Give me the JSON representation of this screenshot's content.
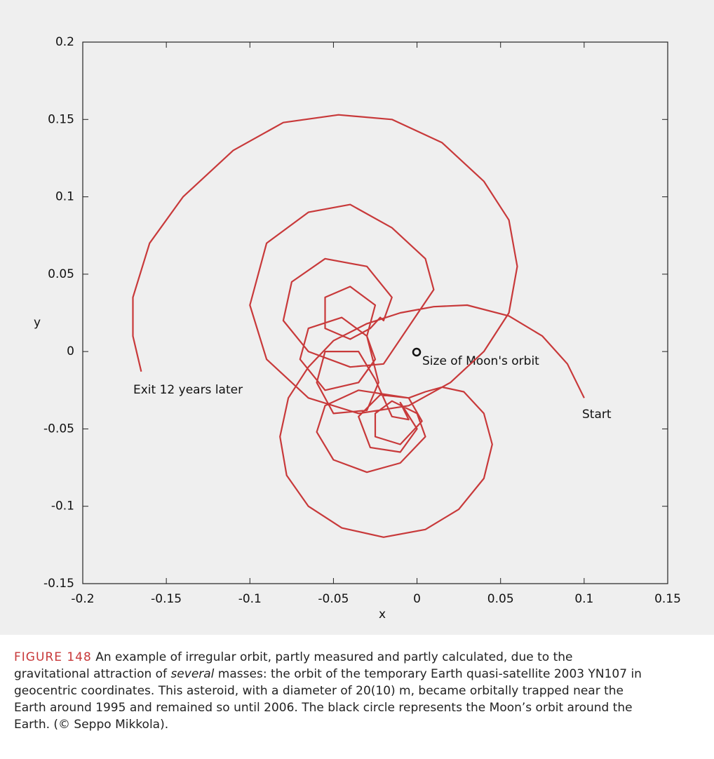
{
  "chart_data": {
    "type": "line",
    "xlabel": "x",
    "ylabel": "y",
    "xlim": [
      -0.2,
      0.15
    ],
    "ylim": [
      -0.15,
      0.2
    ],
    "xticks": [
      -0.2,
      -0.15,
      -0.1,
      -0.05,
      0,
      0.05,
      0.1,
      0.15
    ],
    "yticks": [
      -0.15,
      -0.1,
      -0.05,
      0,
      0.05,
      0.1,
      0.15,
      0.2
    ],
    "annotations": [
      "Start",
      "Exit 12 years later",
      "Size of Moon's orbit"
    ],
    "series": [
      {
        "color": "#c8393a",
        "x": [
          0.1,
          0.09,
          0.075,
          0.055,
          0.03,
          0.01,
          -0.01,
          -0.03,
          -0.05,
          -0.065,
          -0.077,
          -0.082,
          -0.078,
          -0.065,
          -0.045,
          -0.02,
          0.005,
          0.025,
          0.04,
          0.045,
          0.04,
          0.028,
          0.015,
          0.005,
          -0.005,
          -0.035,
          -0.055,
          -0.06,
          -0.05,
          -0.03,
          -0.01,
          0.005,
          0.0,
          -0.015,
          -0.025,
          -0.025,
          -0.01,
          0.003,
          -0.005,
          -0.022,
          -0.035,
          -0.028,
          -0.01,
          0.0,
          -0.01,
          -0.005,
          -0.015,
          -0.025,
          -0.035,
          -0.055,
          -0.06,
          -0.05,
          -0.03,
          -0.023,
          -0.03,
          -0.045,
          -0.065,
          -0.07,
          -0.055,
          -0.035,
          -0.025,
          -0.03,
          -0.025,
          -0.04,
          -0.055,
          -0.055,
          -0.04,
          -0.028,
          -0.022,
          -0.02,
          -0.015,
          -0.03,
          -0.055,
          -0.075,
          -0.08,
          -0.065,
          -0.04,
          -0.02,
          0.01,
          0.005,
          -0.015,
          -0.04,
          -0.065,
          -0.09,
          -0.1,
          -0.09,
          -0.065,
          -0.035,
          -0.005,
          0.02,
          0.04,
          0.055,
          0.06,
          0.055,
          0.04,
          0.015,
          -0.015,
          -0.047,
          -0.08,
          -0.11,
          -0.14,
          -0.16,
          -0.17,
          -0.17,
          -0.165
        ],
        "y": [
          -0.03,
          -0.008,
          0.01,
          0.023,
          0.03,
          0.029,
          0.025,
          0.018,
          0.007,
          -0.01,
          -0.03,
          -0.055,
          -0.08,
          -0.1,
          -0.114,
          -0.12,
          -0.115,
          -0.102,
          -0.082,
          -0.06,
          -0.04,
          -0.026,
          -0.023,
          -0.026,
          -0.03,
          -0.025,
          -0.035,
          -0.052,
          -0.07,
          -0.078,
          -0.072,
          -0.055,
          -0.04,
          -0.032,
          -0.04,
          -0.055,
          -0.06,
          -0.045,
          -0.03,
          -0.028,
          -0.042,
          -0.062,
          -0.065,
          -0.05,
          -0.033,
          -0.044,
          -0.042,
          -0.018,
          0.0,
          0.0,
          -0.02,
          -0.04,
          -0.038,
          -0.02,
          0.01,
          0.022,
          0.015,
          -0.005,
          -0.025,
          -0.02,
          -0.005,
          0.01,
          0.03,
          0.042,
          0.035,
          0.015,
          0.008,
          0.015,
          0.022,
          0.02,
          0.035,
          0.055,
          0.06,
          0.045,
          0.02,
          0.0,
          -0.01,
          -0.008,
          0.04,
          0.06,
          0.08,
          0.095,
          0.09,
          0.07,
          0.03,
          -0.005,
          -0.03,
          -0.04,
          -0.035,
          -0.02,
          0.0,
          0.025,
          0.055,
          0.085,
          0.11,
          0.135,
          0.15,
          0.153,
          0.148,
          0.13,
          0.1,
          0.07,
          0.035,
          0.01,
          -0.013
        ]
      }
    ]
  },
  "caption": {
    "label": "FIGURE 148",
    "lines": [
      [
        "An example of irregular orbit, partly measured and partly calculated, due to the"
      ],
      [
        "gravitational attraction of ",
        "several",
        " masses: the orbit of the temporary Earth quasi-satellite 2003 YN107 in"
      ],
      [
        "geocentric coordinates. This asteroid, with a diameter of 20(10) m, became orbitally trapped near the"
      ],
      [
        "Earth around 1995 and remained so until 2006. The black circle represents the Moon’s orbit around the"
      ],
      [
        "Earth. (© Seppo Mikkola)."
      ]
    ]
  }
}
